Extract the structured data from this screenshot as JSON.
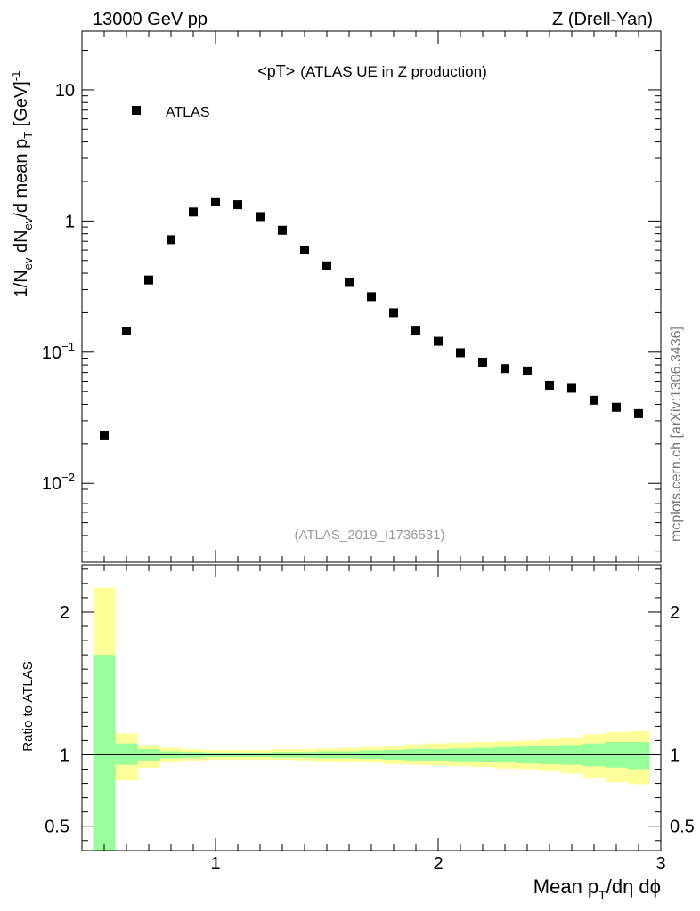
{
  "header": {
    "energy": "13000 GeV pp",
    "process": "Z (Drell-Yan)",
    "plot_title_main": "<pT>",
    "plot_title_sub": "(ATLAS UE in Z production)",
    "analysis_id": "(ATLAS_2019_I1736531)",
    "side_label": "mcplots.cern.ch [arXiv:1306.3436]"
  },
  "chart_data": [
    {
      "type": "scatter",
      "title": "<pT> (ATLAS UE in Z production)",
      "ylabel_parts": {
        "a": "1/N",
        "a_sub": "ev",
        "b": " dN",
        "b_sub": "ev",
        "c": "/d mean p",
        "c_sub": "T",
        "d": " [GeV]",
        "d_sup": "-1"
      },
      "yscale": "log",
      "ylim": [
        0.0025,
        28
      ],
      "xlim": [
        0.4,
        3.0
      ],
      "yticks": [
        {
          "v": 10,
          "base": "10",
          "exp": ""
        },
        {
          "v": 1,
          "base": "1",
          "exp": ""
        },
        {
          "v": 0.1,
          "base": "10",
          "exp": "−1"
        },
        {
          "v": 0.01,
          "base": "10",
          "exp": "−2"
        }
      ],
      "legend": {
        "label": "ATLAS",
        "position": "top-left"
      },
      "series": [
        {
          "name": "ATLAS",
          "x": [
            0.5,
            0.6,
            0.7,
            0.8,
            0.9,
            1.0,
            1.1,
            1.2,
            1.3,
            1.4,
            1.5,
            1.6,
            1.7,
            1.8,
            1.9,
            2.0,
            2.1,
            2.2,
            2.3,
            2.4,
            2.5,
            2.6,
            2.7,
            2.8,
            2.9
          ],
          "y": [
            0.023,
            0.145,
            0.355,
            0.72,
            1.17,
            1.4,
            1.33,
            1.08,
            0.85,
            0.6,
            0.455,
            0.34,
            0.265,
            0.2,
            0.147,
            0.121,
            0.099,
            0.084,
            0.075,
            0.072,
            0.056,
            0.053,
            0.043,
            0.038,
            0.034
          ]
        }
      ]
    },
    {
      "type": "area",
      "title": "Ratio to ATLAS",
      "ylabel": "Ratio to ATLAS",
      "xlabel_parts": {
        "a": "Mean p",
        "a_sub": "T",
        "b": "/dη dϕ"
      },
      "xlim": [
        0.4,
        3.0
      ],
      "ylim": [
        0.33,
        2.33
      ],
      "xticks": [
        {
          "v": 1,
          "label": "1"
        },
        {
          "v": 2,
          "label": "2"
        },
        {
          "v": 3,
          "label": "3"
        }
      ],
      "yticks": [
        {
          "v": 0.5,
          "label": "0.5"
        },
        {
          "v": 1,
          "label": "1"
        },
        {
          "v": 2,
          "label": "2"
        }
      ],
      "reference_line": 1.0,
      "bins": [
        0.45,
        0.55,
        0.65,
        0.75,
        0.85,
        0.95,
        1.05,
        1.15,
        1.25,
        1.35,
        1.45,
        1.55,
        1.65,
        1.75,
        1.85,
        1.95,
        2.05,
        2.15,
        2.25,
        2.35,
        2.45,
        2.55,
        2.65,
        2.75,
        2.85,
        2.95
      ],
      "bands": [
        {
          "name": "total uncertainty",
          "color": "#ffff99",
          "lo": [
            0.33,
            0.82,
            0.91,
            0.95,
            0.96,
            0.965,
            0.965,
            0.965,
            0.965,
            0.96,
            0.955,
            0.95,
            0.945,
            0.935,
            0.93,
            0.925,
            0.92,
            0.915,
            0.905,
            0.9,
            0.885,
            0.87,
            0.835,
            0.81,
            0.795
          ],
          "hi": [
            2.17,
            1.15,
            1.07,
            1.05,
            1.04,
            1.035,
            1.035,
            1.035,
            1.04,
            1.04,
            1.045,
            1.05,
            1.055,
            1.065,
            1.075,
            1.08,
            1.085,
            1.09,
            1.095,
            1.1,
            1.11,
            1.12,
            1.145,
            1.16,
            1.165
          ]
        },
        {
          "name": "stat uncertainty",
          "color": "#99ff99",
          "lo": [
            0.33,
            0.93,
            0.96,
            0.975,
            0.98,
            0.985,
            0.985,
            0.985,
            0.98,
            0.98,
            0.975,
            0.975,
            0.97,
            0.965,
            0.96,
            0.96,
            0.955,
            0.95,
            0.945,
            0.94,
            0.935,
            0.93,
            0.92,
            0.91,
            0.9
          ],
          "hi": [
            1.7,
            1.08,
            1.04,
            1.025,
            1.02,
            1.015,
            1.015,
            1.015,
            1.02,
            1.02,
            1.025,
            1.025,
            1.03,
            1.035,
            1.04,
            1.04,
            1.045,
            1.05,
            1.055,
            1.06,
            1.065,
            1.07,
            1.08,
            1.09,
            1.09
          ]
        }
      ]
    }
  ]
}
